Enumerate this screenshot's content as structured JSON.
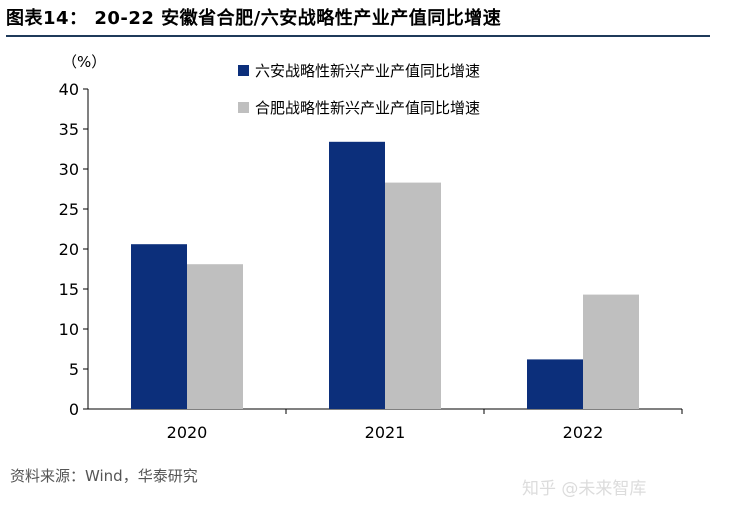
{
  "header": {
    "title": "图表14：  20-22 安徽省合肥/六安战略性产业产值同比增速"
  },
  "footer": {
    "source": "资料来源：Wind，华泰研究"
  },
  "watermark": {
    "text": "知乎 @未来智库"
  },
  "chart_data": {
    "type": "bar",
    "unit_label": "（%）",
    "categories": [
      "2020",
      "2021",
      "2022"
    ],
    "series": [
      {
        "name": "六安战略性新兴产业产值同比增速",
        "values": [
          20.6,
          33.4,
          6.2
        ],
        "color": "#0c2f7b"
      },
      {
        "name": "合肥战略性新兴产业产值同比增速",
        "values": [
          18.1,
          28.3,
          14.3
        ],
        "color": "#bfbfbf"
      }
    ],
    "ylim": [
      0,
      40
    ],
    "yticks": [
      0,
      5,
      10,
      15,
      20,
      25,
      30,
      35,
      40
    ],
    "grid": false,
    "legend_position": "top-right"
  }
}
